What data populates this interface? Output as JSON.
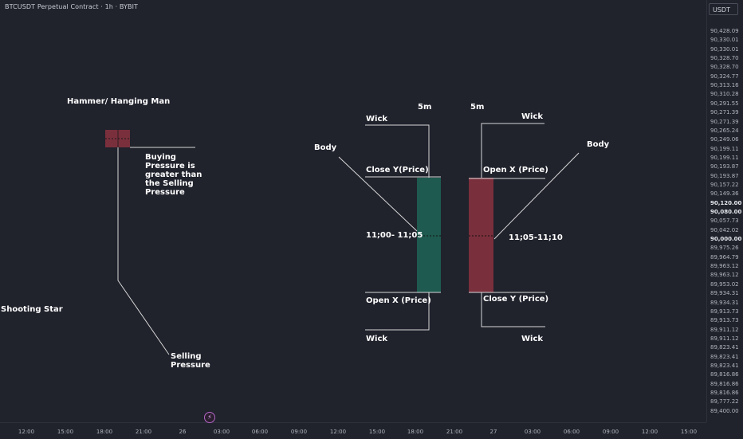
{
  "header": {
    "title": "BTCUSDT Perpetual Contract · 1h · BYBIT"
  },
  "price_axis": {
    "currency": "USDT",
    "labels": [
      "90,428.09",
      "90,330.01",
      "90,330.01",
      "90,328.70",
      "90,328.70",
      "90,324.77",
      "90,313.16",
      "90,310.28",
      "90,291.55",
      "90,271.39",
      "90,271.39",
      "90,265.24",
      "90,249.06",
      "90,199.11",
      "90,199.11",
      "90,193.87",
      "90,193.87",
      "90,157.22",
      "90,149.36",
      "90,120.00",
      "90,080.00",
      "90,057.73",
      "90,042.02",
      "90,000.00",
      "89,975.26",
      "89,964.79",
      "89,963.12",
      "89,963.12",
      "89,953.02",
      "89,934.31",
      "89,934.31",
      "89,913.73",
      "89,913.73",
      "89,911.12",
      "89,911.12",
      "89,823.41",
      "89,823.41",
      "89,823.41",
      "89,816.86",
      "89,816.86",
      "89,816.86",
      "89,777.22",
      "89,400.00"
    ]
  },
  "time_axis": {
    "labels": [
      "12:00",
      "15:00",
      "18:00",
      "21:00",
      "26",
      "03:00",
      "06:00",
      "09:00",
      "12:00",
      "15:00",
      "18:00",
      "21:00",
      "27",
      "03:00",
      "06:00",
      "09:00",
      "12:00",
      "15:00"
    ]
  },
  "annotations": {
    "hammer": "Hammer/ Hanging Man",
    "buying_1": "Buying",
    "buying_2": "Pressure is",
    "buying_3": "greater than",
    "buying_4": "the Selling",
    "buying_5": "Pressure",
    "shooting_star": "Shooting Star",
    "selling_1": "Selling",
    "selling_2": "Pressure",
    "tf_left": "5m",
    "tf_right": "5m",
    "wick_tl": "Wick",
    "wick_tr": "Wick",
    "wick_bl": "Wick",
    "wick_br": "Wick",
    "body_left": "Body",
    "body_right": "Body",
    "close_y": "Close Y(Price)",
    "open_x_right": "Open X (Price)",
    "time_left": "11;00- 11;05",
    "time_right": "11;05-11;10",
    "open_x_left": "Open X (Price)",
    "close_y_right": "Close Y (Price)"
  },
  "colors": {
    "bull": "#1e5a4f",
    "bear": "#7a2f3c",
    "bg": "#20222c"
  }
}
